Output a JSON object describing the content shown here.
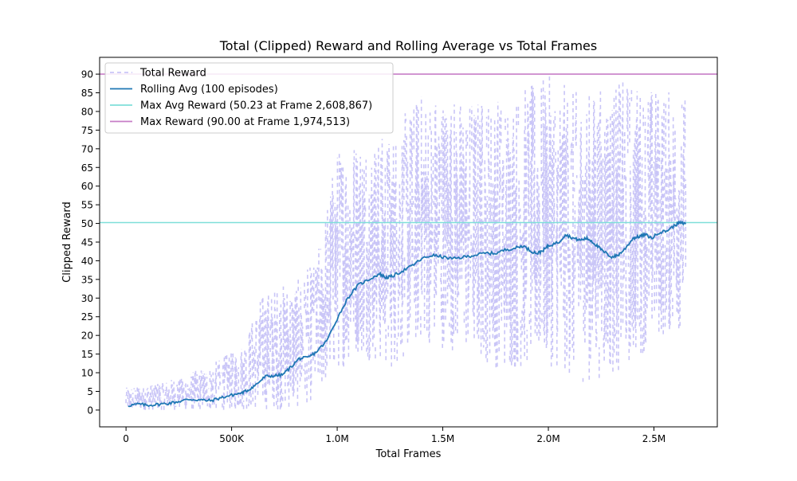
{
  "chart_data": {
    "type": "line",
    "title": "Total (Clipped) Reward and Rolling Average vs Total Frames",
    "xlabel": "Total Frames",
    "ylabel": "Clipped Reward",
    "xlim": [
      -125000,
      2800000
    ],
    "ylim": [
      -4.5,
      94.5
    ],
    "x_ticks": [
      0,
      500000,
      1000000,
      1500000,
      2000000,
      2500000
    ],
    "x_tick_labels": [
      "0",
      "500K",
      "1.0M",
      "1.5M",
      "2.0M",
      "2.5M"
    ],
    "y_ticks": [
      0,
      5,
      10,
      15,
      20,
      25,
      30,
      35,
      40,
      45,
      50,
      55,
      60,
      65,
      70,
      75,
      80,
      85,
      90
    ],
    "y_tick_labels": [
      "0",
      "5",
      "10",
      "15",
      "20",
      "25",
      "30",
      "35",
      "40",
      "45",
      "50",
      "55",
      "60",
      "65",
      "70",
      "75",
      "80",
      "85",
      "90"
    ],
    "grid": false,
    "legend_position": "top-left",
    "legend": [
      "Total Reward",
      "Rolling Avg (100 episodes)",
      "Max Avg Reward (50.23 at Frame 2,608,867)",
      "Max Reward (90.00 at Frame 1,974,513)"
    ],
    "series": [
      {
        "name": "Total Reward",
        "style": "dashed",
        "color": "#c9c5f7",
        "band": [
          {
            "x": 0,
            "low": 0,
            "high": 6
          },
          {
            "x": 200000,
            "low": 0,
            "high": 8
          },
          {
            "x": 400000,
            "low": 0,
            "high": 12
          },
          {
            "x": 550000,
            "low": 0,
            "high": 18
          },
          {
            "x": 650000,
            "low": 0,
            "high": 32
          },
          {
            "x": 800000,
            "low": 0,
            "high": 35
          },
          {
            "x": 900000,
            "low": 3,
            "high": 40
          },
          {
            "x": 1000000,
            "low": 10,
            "high": 71
          },
          {
            "x": 1100000,
            "low": 15,
            "high": 74
          },
          {
            "x": 1250000,
            "low": 10,
            "high": 74
          },
          {
            "x": 1400000,
            "low": 18,
            "high": 86
          },
          {
            "x": 1600000,
            "low": 15,
            "high": 84
          },
          {
            "x": 1800000,
            "low": 10,
            "high": 85
          },
          {
            "x": 2000000,
            "low": 12,
            "high": 90
          },
          {
            "x": 2150000,
            "low": 7,
            "high": 85
          },
          {
            "x": 2350000,
            "low": 10,
            "high": 89
          },
          {
            "x": 2500000,
            "low": 18,
            "high": 87
          },
          {
            "x": 2650000,
            "low": 22,
            "high": 85
          }
        ]
      },
      {
        "name": "Rolling Avg (100 episodes)",
        "color": "#1f77b4",
        "x": [
          10000,
          60000,
          100000,
          150000,
          200000,
          250000,
          300000,
          350000,
          400000,
          450000,
          500000,
          550000,
          580000,
          620000,
          660000,
          700000,
          740000,
          780000,
          820000,
          860000,
          900000,
          950000,
          1000000,
          1050000,
          1100000,
          1150000,
          1200000,
          1230000,
          1260000,
          1300000,
          1350000,
          1400000,
          1450000,
          1500000,
          1550000,
          1600000,
          1650000,
          1700000,
          1750000,
          1800000,
          1850000,
          1880000,
          1920000,
          1950000,
          1980000,
          2000000,
          2050000,
          2080000,
          2120000,
          2150000,
          2180000,
          2200000,
          2230000,
          2260000,
          2300000,
          2330000,
          2360000,
          2400000,
          2430000,
          2460000,
          2490000,
          2520000,
          2560000,
          2600000,
          2620000,
          2650000
        ],
        "y": [
          1.2,
          1.6,
          1.3,
          1.5,
          1.8,
          2.3,
          2.9,
          2.7,
          2.5,
          3.3,
          4.0,
          4.6,
          5.4,
          7.0,
          9.0,
          9.2,
          9.4,
          11.5,
          13.8,
          14.0,
          15.5,
          18.5,
          24.5,
          30.0,
          33.5,
          35.0,
          36.5,
          35.5,
          35.8,
          37.0,
          38.5,
          40.5,
          41.5,
          41.0,
          40.5,
          41.0,
          41.5,
          42.0,
          42.0,
          43.0,
          43.5,
          44.0,
          42.5,
          42.0,
          43.0,
          44.0,
          45.0,
          47.0,
          46.0,
          45.5,
          46.0,
          45.5,
          44.0,
          42.5,
          41.0,
          41.5,
          43.0,
          46.0,
          46.5,
          47.0,
          46.0,
          47.5,
          48.0,
          49.5,
          50.23,
          49.8
        ]
      },
      {
        "name": "Max Avg Reward (50.23 at Frame 2,608,867)",
        "type": "hline",
        "color": "#7fdfd9",
        "y": 50.23
      },
      {
        "name": "Max Reward (90.00 at Frame 1,974,513)",
        "type": "hline",
        "color": "#c77ec7",
        "y": 90.0
      }
    ]
  }
}
